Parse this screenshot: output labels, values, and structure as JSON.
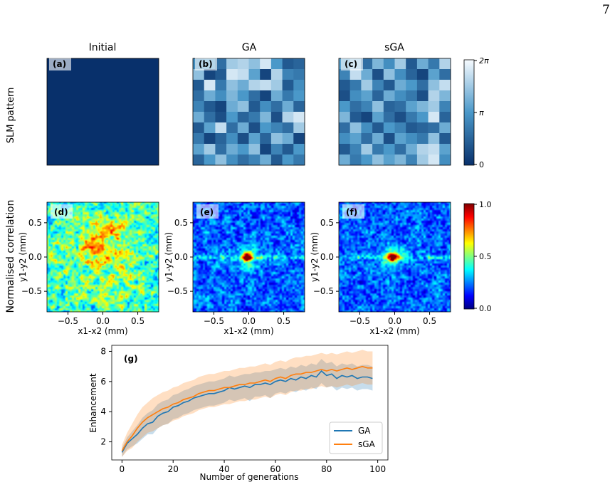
{
  "page_number": "7",
  "columns": [
    "Initial",
    "GA",
    "sGA"
  ],
  "rows": {
    "top_label": "SLM pattern",
    "bottom_label": "Normalised correlation"
  },
  "panels": {
    "top": [
      "(a)",
      "(b)",
      "(c)"
    ],
    "bottom": [
      "(d)",
      "(e)",
      "(f)"
    ]
  },
  "slm_colorbar": {
    "ticks": [
      "0",
      "π",
      "2π"
    ],
    "colors": [
      "#08306b",
      "#4a98c9",
      "#f7fbff"
    ]
  },
  "corr_colorbar": {
    "ticks": [
      "0.0",
      "0.5",
      "1.0"
    ],
    "colormap": "jet"
  },
  "corr_axes": {
    "xlabel": "x1-x2 (mm)",
    "ylabel": "y1-y2 (mm)",
    "xticks": [
      "−0.5",
      "0.0",
      "0.5"
    ],
    "yticks": [
      "0.5",
      "0.0",
      "−0.5"
    ],
    "range": [
      -0.8,
      0.8
    ]
  },
  "slm_patterns": {
    "initial": {
      "uniform_level": 0.0
    },
    "GA": [
      [
        0.45,
        0.5,
        0.3,
        0.75,
        0.8,
        0.7,
        0.9,
        0.5,
        0.2,
        0.25
      ],
      [
        0.7,
        0.1,
        0.2,
        0.9,
        0.85,
        0.55,
        0.1,
        0.8,
        0.4,
        0.35
      ],
      [
        0.2,
        0.9,
        0.35,
        0.7,
        0.6,
        0.8,
        0.85,
        0.75,
        0.2,
        0.45
      ],
      [
        0.3,
        0.6,
        0.45,
        0.65,
        0.5,
        0.3,
        0.1,
        0.6,
        0.35,
        0.5
      ],
      [
        0.4,
        0.2,
        0.1,
        0.6,
        0.7,
        0.2,
        0.45,
        0.3,
        0.6,
        0.25
      ],
      [
        0.6,
        0.3,
        0.15,
        0.5,
        0.25,
        0.35,
        0.65,
        0.15,
        0.8,
        0.9
      ],
      [
        0.2,
        0.55,
        0.85,
        0.3,
        0.6,
        0.15,
        0.5,
        0.4,
        0.3,
        0.75
      ],
      [
        0.35,
        0.1,
        0.25,
        0.45,
        0.15,
        0.55,
        0.25,
        0.7,
        0.6,
        0.1
      ],
      [
        0.55,
        0.75,
        0.3,
        0.6,
        0.5,
        0.7,
        0.1,
        0.4,
        0.2,
        0.5
      ],
      [
        0.25,
        0.5,
        0.7,
        0.45,
        0.3,
        0.4,
        0.6,
        0.2,
        0.5,
        0.35
      ]
    ],
    "sGA": [
      [
        0.55,
        0.7,
        0.3,
        0.65,
        0.45,
        0.75,
        0.2,
        0.6,
        0.35,
        0.8
      ],
      [
        0.4,
        0.85,
        0.6,
        0.15,
        0.7,
        0.45,
        0.25,
        0.1,
        0.55,
        0.3
      ],
      [
        0.2,
        0.35,
        0.75,
        0.4,
        0.2,
        0.6,
        0.5,
        0.3,
        0.7,
        0.85
      ],
      [
        0.15,
        0.45,
        0.55,
        0.25,
        0.6,
        0.45,
        0.35,
        0.15,
        0.8,
        0.65
      ],
      [
        0.5,
        0.3,
        0.4,
        0.7,
        0.25,
        0.3,
        0.55,
        0.65,
        0.75,
        0.4
      ],
      [
        0.65,
        0.2,
        0.1,
        0.55,
        0.3,
        0.15,
        0.35,
        0.5,
        0.9,
        0.25
      ],
      [
        0.3,
        0.7,
        0.45,
        0.2,
        0.5,
        0.4,
        0.2,
        0.25,
        0.3,
        0.6
      ],
      [
        0.45,
        0.55,
        0.3,
        0.6,
        0.15,
        0.55,
        0.45,
        0.35,
        0.7,
        0.2
      ],
      [
        0.2,
        0.4,
        0.75,
        0.35,
        0.5,
        0.3,
        0.6,
        0.8,
        0.85,
        0.55
      ],
      [
        0.6,
        0.35,
        0.5,
        0.7,
        0.55,
        0.65,
        0.4,
        0.75,
        0.9,
        0.45
      ]
    ]
  },
  "correlation_maps": {
    "initial": {
      "background_level": 0.42,
      "peak": 0.0,
      "description_tag": "speckle-broad"
    },
    "GA": {
      "background_level": 0.22,
      "peak": 1.0,
      "peak_xy_mm": [
        -0.02,
        0.0
      ],
      "horizontal_streak": true
    },
    "sGA": {
      "background_level": 0.22,
      "peak": 1.0,
      "peak_xy_mm": [
        -0.03,
        0.0
      ],
      "horizontal_streak": true
    }
  },
  "chart_data": {
    "type": "line",
    "title": "",
    "panel_label": "(g)",
    "xlabel": "Number of generations",
    "ylabel": "Enhancement",
    "xlim": [
      -4,
      104
    ],
    "ylim": [
      0.8,
      8.4
    ],
    "xticks": [
      0,
      20,
      40,
      60,
      80,
      100
    ],
    "yticks": [
      2,
      4,
      6,
      8
    ],
    "legend_position": "bottom-right",
    "series": [
      {
        "name": "GA",
        "color": "#1f77b4",
        "x": [
          0,
          2,
          4,
          6,
          8,
          10,
          12,
          14,
          16,
          18,
          20,
          22,
          24,
          26,
          28,
          30,
          32,
          34,
          36,
          38,
          40,
          42,
          44,
          46,
          48,
          50,
          52,
          54,
          56,
          58,
          60,
          62,
          64,
          66,
          68,
          70,
          72,
          74,
          76,
          78,
          80,
          82,
          84,
          86,
          88,
          90,
          92,
          94,
          96,
          98
        ],
        "values": [
          1.3,
          1.9,
          2.2,
          2.5,
          2.9,
          3.2,
          3.3,
          3.7,
          3.9,
          4.0,
          4.3,
          4.4,
          4.6,
          4.7,
          4.9,
          5.0,
          5.1,
          5.2,
          5.2,
          5.3,
          5.4,
          5.6,
          5.5,
          5.6,
          5.7,
          5.6,
          5.8,
          5.8,
          5.9,
          5.8,
          6.0,
          6.1,
          6.0,
          6.2,
          6.1,
          6.3,
          6.2,
          6.4,
          6.3,
          6.7,
          6.4,
          6.5,
          6.2,
          6.4,
          6.3,
          6.4,
          6.2,
          6.3,
          6.3,
          6.2
        ],
        "upper": [
          1.6,
          2.3,
          2.7,
          3.1,
          3.6,
          3.9,
          4.1,
          4.5,
          4.7,
          4.8,
          5.1,
          5.2,
          5.4,
          5.5,
          5.7,
          5.8,
          5.9,
          6.0,
          6.0,
          6.1,
          6.2,
          6.4,
          6.3,
          6.4,
          6.5,
          6.5,
          6.6,
          6.6,
          6.7,
          6.7,
          6.8,
          6.9,
          6.8,
          7.0,
          6.9,
          7.1,
          7.0,
          7.2,
          7.1,
          7.5,
          7.2,
          7.3,
          7.0,
          7.2,
          7.1,
          7.2,
          7.0,
          7.1,
          7.1,
          7.0
        ],
        "lower": [
          1.0,
          1.5,
          1.7,
          1.9,
          2.2,
          2.5,
          2.5,
          2.9,
          3.1,
          3.2,
          3.5,
          3.6,
          3.8,
          3.9,
          4.1,
          4.2,
          4.3,
          4.4,
          4.4,
          4.5,
          4.6,
          4.8,
          4.7,
          4.8,
          4.9,
          4.7,
          5.0,
          5.0,
          5.1,
          4.9,
          5.2,
          5.3,
          5.2,
          5.4,
          5.3,
          5.5,
          5.4,
          5.6,
          5.5,
          5.9,
          5.6,
          5.7,
          5.4,
          5.6,
          5.5,
          5.6,
          5.4,
          5.5,
          5.5,
          5.4
        ]
      },
      {
        "name": "sGA",
        "color": "#ff7f0e",
        "x": [
          0,
          2,
          4,
          6,
          8,
          10,
          12,
          14,
          16,
          18,
          20,
          22,
          24,
          26,
          28,
          30,
          32,
          34,
          36,
          38,
          40,
          42,
          44,
          46,
          48,
          50,
          52,
          54,
          56,
          58,
          60,
          62,
          64,
          66,
          68,
          70,
          72,
          74,
          76,
          78,
          80,
          82,
          84,
          86,
          88,
          90,
          92,
          94,
          96,
          98
        ],
        "values": [
          1.4,
          2.0,
          2.4,
          2.9,
          3.3,
          3.6,
          3.8,
          4.0,
          4.2,
          4.3,
          4.5,
          4.6,
          4.8,
          4.9,
          5.0,
          5.2,
          5.3,
          5.4,
          5.4,
          5.5,
          5.6,
          5.6,
          5.7,
          5.8,
          5.8,
          5.9,
          5.9,
          6.0,
          6.1,
          6.0,
          6.2,
          6.3,
          6.2,
          6.4,
          6.5,
          6.5,
          6.6,
          6.6,
          6.7,
          6.8,
          6.7,
          6.8,
          6.7,
          6.8,
          6.9,
          6.8,
          6.9,
          7.0,
          6.9,
          6.9
        ],
        "upper": [
          1.8,
          2.6,
          3.2,
          3.8,
          4.3,
          4.6,
          4.9,
          5.1,
          5.3,
          5.4,
          5.6,
          5.7,
          5.9,
          6.0,
          6.1,
          6.3,
          6.4,
          6.5,
          6.5,
          6.6,
          6.7,
          6.7,
          6.8,
          6.9,
          6.9,
          7.0,
          7.0,
          7.1,
          7.2,
          7.1,
          7.3,
          7.4,
          7.3,
          7.5,
          7.6,
          7.6,
          7.7,
          7.7,
          7.8,
          7.9,
          7.8,
          7.9,
          7.8,
          7.9,
          8.0,
          7.9,
          8.0,
          8.1,
          8.0,
          8.0
        ],
        "lower": [
          1.0,
          1.4,
          1.6,
          2.0,
          2.3,
          2.6,
          2.7,
          2.9,
          3.1,
          3.2,
          3.4,
          3.5,
          3.7,
          3.8,
          3.9,
          4.1,
          4.2,
          4.3,
          4.3,
          4.4,
          4.5,
          4.5,
          4.6,
          4.7,
          4.7,
          4.8,
          4.8,
          4.9,
          5.0,
          4.9,
          5.1,
          5.2,
          5.1,
          5.3,
          5.4,
          5.4,
          5.5,
          5.5,
          5.6,
          5.7,
          5.6,
          5.7,
          5.6,
          5.7,
          5.8,
          5.7,
          5.8,
          5.9,
          5.8,
          5.8
        ]
      }
    ]
  }
}
